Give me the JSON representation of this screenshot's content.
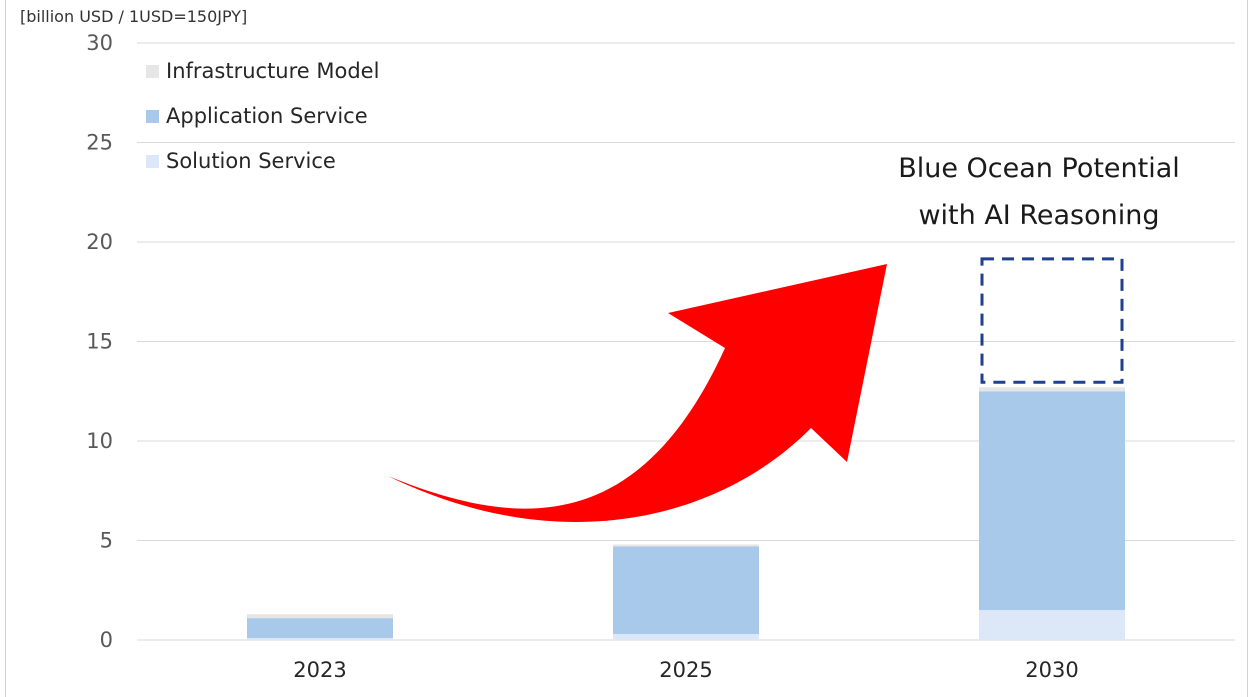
{
  "chart_data": {
    "type": "bar",
    "stacked": true,
    "unit_label": "[billion USD /  1USD=150JPY]",
    "categories": [
      "2023",
      "2025",
      "2030"
    ],
    "series": [
      {
        "name": "Solution Service",
        "color": "#dce8f7",
        "values": [
          0.1,
          0.3,
          1.5
        ]
      },
      {
        "name": "Application Service",
        "color": "#a9c9eb",
        "values": [
          1.0,
          4.4,
          11.0
        ]
      },
      {
        "name": "Infrastructure Model",
        "color": "#e6e6e6",
        "values": [
          0.2,
          0.1,
          0.2
        ]
      }
    ],
    "ylim": [
      0,
      30
    ],
    "yticks": [
      0,
      5,
      10,
      15,
      20,
      25,
      30
    ],
    "grid": true,
    "legend_position": "top-left",
    "annotation": {
      "line1": "Blue Ocean Potential",
      "line2": "with AI Reasoning",
      "category": "2030",
      "box_range": [
        12.95,
        19.15
      ],
      "box_color": "#1f3f8f",
      "arrow_color": "#ff0000"
    }
  }
}
